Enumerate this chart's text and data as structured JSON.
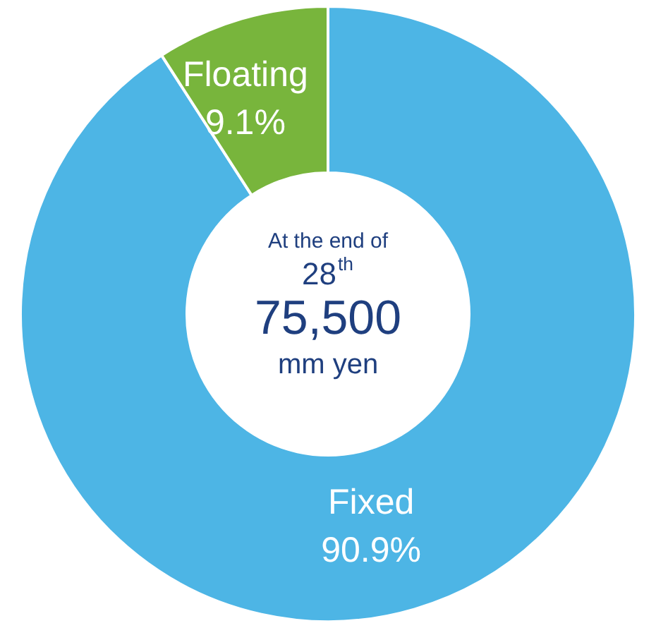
{
  "chart_data": {
    "type": "donut",
    "categories": [
      "Fixed",
      "Floating"
    ],
    "values": [
      90.9,
      9.1
    ],
    "value_labels": [
      "90.9%",
      "9.1%"
    ],
    "colors": [
      "#4db5e5",
      "#78b53c"
    ],
    "annotations": [
      "At the end of",
      "28$^{th}$",
      "75,500",
      "mm yen"
    ]
  }
}
